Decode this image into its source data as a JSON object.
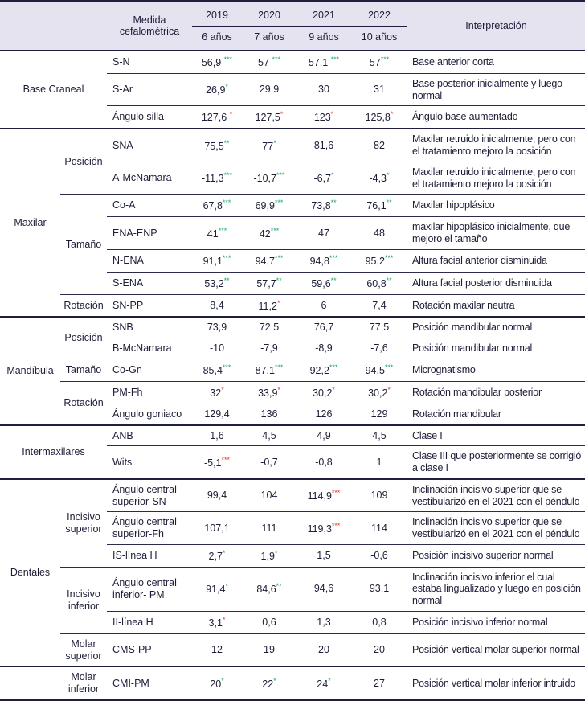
{
  "colors": {
    "header_bg": "#e6e3f1",
    "rule_dark": "#1e1e3f",
    "rule_thin": "#2b2b4c",
    "text": "#1d1d38",
    "asterisk_green": "#2aa06b",
    "asterisk_red": "#e43a2e"
  },
  "header": {
    "medida": "Medida cefalométrica",
    "interpretacion": "Interpretación",
    "years": [
      "2019",
      "2020",
      "2021",
      "2022"
    ],
    "ages": [
      "6 años",
      "7 años",
      "9 años",
      "10 años"
    ]
  },
  "groups": [
    {
      "name": "Base Craneal",
      "merged": true,
      "subgroups": [
        {
          "name": null,
          "rows": [
            {
              "measure": "S-N",
              "values": [
                {
                  "n": "56,9",
                  "a": "***",
                  "c": "g",
                  "sp": true
                },
                {
                  "n": "57",
                  "a": "***",
                  "c": "g",
                  "sp": true
                },
                {
                  "n": "57,1",
                  "a": "***",
                  "c": "g",
                  "sp": true
                },
                {
                  "n": "57",
                  "a": "***",
                  "c": "g"
                }
              ],
              "interpretation": "Base anterior corta"
            },
            {
              "measure": "S-Ar",
              "values": [
                {
                  "n": "26,9",
                  "a": "*",
                  "c": "g"
                },
                "29,9",
                "30",
                "31"
              ],
              "interpretation": "Base posterior inicialmente y luego normal"
            },
            {
              "measure": "Ángulo silla",
              "values": [
                {
                  "n": "127,6",
                  "a": "*",
                  "c": "r",
                  "sp": true
                },
                {
                  "n": "127,5",
                  "a": "*",
                  "c": "r"
                },
                {
                  "n": "123",
                  "a": "*",
                  "c": "r"
                },
                {
                  "n": "125,8",
                  "a": "*",
                  "c": "r"
                }
              ],
              "interpretation": "Ángulo base aumentado"
            }
          ]
        }
      ]
    },
    {
      "name": "Maxilar",
      "subgroups": [
        {
          "name": "Posición",
          "rows": [
            {
              "measure": "SNA",
              "values": [
                {
                  "n": "75,5",
                  "a": "**",
                  "c": "g"
                },
                {
                  "n": "77",
                  "a": "*",
                  "c": "g"
                },
                "81,6",
                "82"
              ],
              "interpretation": "Maxilar retruido inicialmente, pero con el tratamiento mejoro la posición"
            },
            {
              "measure": "A-McNamara",
              "values": [
                {
                  "n": "-11,3",
                  "a": "***",
                  "c": "g"
                },
                {
                  "n": "-10,7",
                  "a": "***",
                  "c": "g"
                },
                {
                  "n": "-6,7",
                  "a": "*",
                  "c": "g"
                },
                {
                  "n": "-4,3",
                  "a": "*",
                  "c": "g"
                }
              ],
              "interpretation": "Maxilar retruido inicialmente, pero con el tratamiento mejoro la posición"
            }
          ]
        },
        {
          "name": "Tamaño",
          "rows": [
            {
              "measure": "Co-A",
              "values": [
                {
                  "n": "67,8",
                  "a": "***",
                  "c": "g"
                },
                {
                  "n": "69,9",
                  "a": "***",
                  "c": "g"
                },
                {
                  "n": "73,8",
                  "a": "**",
                  "c": "g"
                },
                {
                  "n": "76,1",
                  "a": "**",
                  "c": "g"
                }
              ],
              "interpretation": "Maxilar hipoplásico"
            },
            {
              "measure": "ENA-ENP",
              "values": [
                {
                  "n": "41",
                  "a": "***",
                  "c": "g"
                },
                {
                  "n": "42",
                  "a": "***",
                  "c": "g"
                },
                "47",
                "48"
              ],
              "interpretation": "maxilar hipoplásico inicialmente, que mejoro el tamaño"
            },
            {
              "measure": "N-ENA",
              "values": [
                {
                  "n": "91,1",
                  "a": "***",
                  "c": "g"
                },
                {
                  "n": "94,7",
                  "a": "***",
                  "c": "g"
                },
                {
                  "n": "94,8",
                  "a": "***",
                  "c": "g"
                },
                {
                  "n": "95,2",
                  "a": "***",
                  "c": "g"
                }
              ],
              "interpretation": "Altura facial anterior disminuida"
            },
            {
              "measure": "S-ENA",
              "values": [
                {
                  "n": "53,2",
                  "a": "**",
                  "c": "g"
                },
                {
                  "n": "57,7",
                  "a": "**",
                  "c": "g"
                },
                {
                  "n": "59,6",
                  "a": "**",
                  "c": "g"
                },
                {
                  "n": "60,8",
                  "a": "**",
                  "c": "g"
                }
              ],
              "interpretation": "Altura facial posterior disminuida"
            }
          ]
        },
        {
          "name": "Rotación",
          "rows": [
            {
              "measure": "SN-PP",
              "values": [
                "8,4",
                {
                  "n": "11,2",
                  "a": "*",
                  "c": "r"
                },
                "6",
                "7,4"
              ],
              "interpretation": "Rotación maxilar neutra"
            }
          ]
        }
      ]
    },
    {
      "name": "Mandíbula",
      "subgroups": [
        {
          "name": "Posición",
          "rows": [
            {
              "measure": "SNB",
              "values": [
                "73,9",
                "72,5",
                "76,7",
                "77,5"
              ],
              "interpretation": "Posición mandibular normal"
            },
            {
              "measure": "B-McNamara",
              "values": [
                "-10",
                "-7,9",
                "-8,9",
                "-7,6"
              ],
              "interpretation": "Posición mandibular normal"
            }
          ]
        },
        {
          "name": "Tamaño",
          "rows": [
            {
              "measure": "Co-Gn",
              "values": [
                {
                  "n": "85,4",
                  "a": "***",
                  "c": "g"
                },
                {
                  "n": "87,1",
                  "a": "***",
                  "c": "g"
                },
                {
                  "n": "92,2",
                  "a": "***",
                  "c": "g"
                },
                {
                  "n": "94,5",
                  "a": "***",
                  "c": "g"
                }
              ],
              "interpretation": "Micrognatismo"
            }
          ]
        },
        {
          "name": "Rotación",
          "rows": [
            {
              "measure": "PM-Fh",
              "values": [
                {
                  "n": "32",
                  "a": "*",
                  "c": "r"
                },
                {
                  "n": "33,9",
                  "a": "*",
                  "c": "r"
                },
                {
                  "n": "30,2",
                  "a": "*",
                  "c": "r"
                },
                {
                  "n": "30,2",
                  "a": "*",
                  "c": "r"
                }
              ],
              "interpretation": "Rotación mandibular posterior"
            },
            {
              "measure": "Ángulo goniaco",
              "values": [
                "129,4",
                "136",
                "126",
                "129"
              ],
              "interpretation": "Rotación mandibular"
            }
          ]
        }
      ]
    },
    {
      "name": "Intermaxilares",
      "merged": true,
      "subgroups": [
        {
          "name": null,
          "rows": [
            {
              "measure": "ANB",
              "values": [
                "1,6",
                "4,5",
                "4,9",
                "4,5"
              ],
              "interpretation": "Clase I"
            },
            {
              "measure": "Wits",
              "values": [
                {
                  "n": "-5,1",
                  "a": "***",
                  "c": "r"
                },
                "-0,7",
                "-0,8",
                "1"
              ],
              "interpretation": "Clase III que posteriormente se corrigió a clase I"
            }
          ]
        }
      ]
    },
    {
      "name": "Dentales",
      "subgroups": [
        {
          "name": "Incisivo superior",
          "rows": [
            {
              "measure": "Ángulo central superior-SN",
              "values": [
                "99,4",
                "104",
                {
                  "n": "114,9",
                  "a": "***",
                  "c": "r"
                },
                "109"
              ],
              "interpretation": "Inclinación incisivo superior que se vestibularizó en el 2021 con el péndulo"
            },
            {
              "measure": "Ángulo central superior-Fh",
              "values": [
                "107,1",
                "111",
                {
                  "n": "119,3",
                  "a": "***",
                  "c": "r"
                },
                "114"
              ],
              "interpretation": "Inclinación incisivo superior que se vestibularizó en el 2021 con el péndulo"
            },
            {
              "measure": "IS-línea H",
              "values": [
                {
                  "n": "2,7",
                  "a": "*",
                  "c": "g"
                },
                {
                  "n": "1,9",
                  "a": "*",
                  "c": "g"
                },
                "1,5",
                "-0,6"
              ],
              "interpretation": "Posición incisivo superior normal"
            }
          ]
        },
        {
          "name": "Incisivo inferior",
          "rows": [
            {
              "measure": "Ángulo central inferior- PM",
              "values": [
                {
                  "n": "91,4",
                  "a": "*",
                  "c": "g"
                },
                {
                  "n": "84,6",
                  "a": "**",
                  "c": "g"
                },
                "94,6",
                "93,1"
              ],
              "interpretation": "Inclinación incisivo inferior el cual estaba lingualizado y luego en posición normal"
            },
            {
              "measure": "II-línea H",
              "values": [
                {
                  "n": "3,1",
                  "a": "*",
                  "c": "r"
                },
                "0,6",
                "1,3",
                "0,8"
              ],
              "interpretation": "Posición incisivo inferior normal"
            }
          ]
        },
        {
          "name": "Molar superior",
          "rows": [
            {
              "measure": "CMS-PP",
              "values": [
                "12",
                "19",
                "20",
                "20"
              ],
              "interpretation": "Posición vertical molar superior normal"
            }
          ]
        }
      ]
    },
    {
      "name": "",
      "subgroups": [
        {
          "name": "Molar inferior",
          "rows": [
            {
              "measure": "CMI-PM",
              "values": [
                {
                  "n": "20",
                  "a": "*",
                  "c": "g"
                },
                {
                  "n": "22",
                  "a": "*",
                  "c": "g"
                },
                {
                  "n": "24",
                  "a": "*",
                  "c": "g"
                },
                "27"
              ],
              "interpretation": "Posición vertical molar inferior intruido"
            }
          ]
        }
      ]
    }
  ]
}
